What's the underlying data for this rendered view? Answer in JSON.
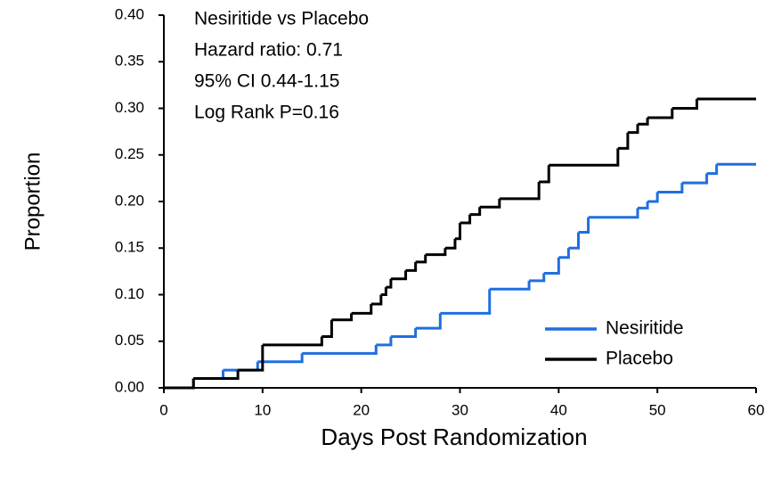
{
  "chart_data": {
    "type": "line",
    "step": "post",
    "x_label": "Days Post Randomization",
    "y_label": "Proportion",
    "annotations": [
      {
        "text": "Nesiritide vs Placebo",
        "color": "#1f6fe0"
      },
      {
        "text": "Hazard ratio: 0.71",
        "color": "#000000"
      },
      {
        "text": "95% CI 0.44-1.15",
        "color": "#000000"
      },
      {
        "text": "Log Rank P=0.16",
        "color": "#000000"
      }
    ],
    "xlim": [
      0,
      60
    ],
    "xticks": [
      0,
      10,
      20,
      30,
      40,
      50,
      60
    ],
    "ylim": [
      0,
      0.4
    ],
    "yticks": [
      {
        "value": 0,
        "label": "0.00"
      },
      {
        "value": 0.05,
        "label": "0.05"
      },
      {
        "value": 0.1,
        "label": "0.10"
      },
      {
        "value": 0.15,
        "label": "0.15"
      },
      {
        "value": 0.2,
        "label": "0.20"
      },
      {
        "value": 0.25,
        "label": "0.25"
      },
      {
        "value": 0.3,
        "label": "0.30"
      },
      {
        "value": 0.35,
        "label": "0.35"
      },
      {
        "value": 0.4,
        "label": "0.40"
      }
    ],
    "legend": "lower right",
    "series": [
      {
        "name": "Nesiritide",
        "color": "#1f6fe0",
        "x": [
          0,
          3,
          6,
          9.5,
          14,
          21.5,
          23,
          25.5,
          28,
          33,
          37,
          38.5,
          40,
          41,
          42,
          43,
          48,
          49,
          50,
          52.5,
          55,
          56,
          60
        ],
        "values": [
          0,
          0.01,
          0.019,
          0.028,
          0.037,
          0.046,
          0.055,
          0.064,
          0.08,
          0.106,
          0.115,
          0.123,
          0.14,
          0.15,
          0.167,
          0.183,
          0.193,
          0.2,
          0.21,
          0.22,
          0.23,
          0.24,
          0.24
        ]
      },
      {
        "name": "Placebo",
        "color": "#000000",
        "x": [
          0,
          3,
          7.5,
          10,
          16,
          17,
          19,
          21,
          22,
          22.5,
          23,
          24.5,
          25.5,
          26.5,
          28.5,
          29.5,
          30,
          31,
          32,
          34,
          38,
          39,
          46,
          47,
          48,
          49,
          51.5,
          54,
          60
        ],
        "values": [
          0,
          0.01,
          0.019,
          0.046,
          0.055,
          0.073,
          0.08,
          0.09,
          0.1,
          0.108,
          0.117,
          0.126,
          0.135,
          0.143,
          0.15,
          0.16,
          0.177,
          0.186,
          0.194,
          0.203,
          0.221,
          0.239,
          0.257,
          0.274,
          0.283,
          0.29,
          0.3,
          0.31,
          0.31
        ]
      }
    ]
  }
}
